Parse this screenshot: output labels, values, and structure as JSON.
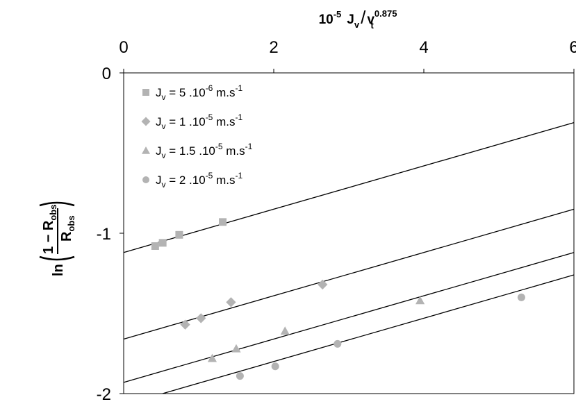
{
  "chart_data": {
    "type": "scatter",
    "x_axis": {
      "position": "top",
      "label_main": "10",
      "label_exp": "-5",
      "label_rest": "J",
      "label_rest_sub": "v",
      "label_slash": "/",
      "label_denom": "v",
      "label_denom_sub": "t",
      "label_denom_exp": "0.875",
      "min": 0,
      "max": 6,
      "ticks": [
        "0",
        "2",
        "4",
        "6"
      ]
    },
    "y_axis": {
      "label_ln": "ln",
      "label_num": "1 − R",
      "label_num_sub": "obs",
      "label_den": "R",
      "label_den_sub": "obs",
      "min": -2,
      "max": 0,
      "ticks": [
        "0",
        "-1",
        "-2"
      ]
    },
    "legend": {
      "placement": "top-left",
      "entries": [
        {
          "prefix": "J",
          "sub": "v",
          "mid": " = 5 .10",
          "exp": "-6",
          "unit": " m.s",
          "unit_exp": "-1"
        },
        {
          "prefix": "J",
          "sub": "v",
          "mid": " = 1 .10",
          "exp": "-5",
          "unit": " m.s",
          "unit_exp": "-1"
        },
        {
          "prefix": "J",
          "sub": "v",
          "mid": " = 1.5 .10",
          "exp": "-5",
          "unit": " m.s",
          "unit_exp": "-1"
        },
        {
          "prefix": "J",
          "sub": "v",
          "mid": " = 2 .10",
          "exp": "-5",
          "unit": " m.s",
          "unit_exp": "-1"
        }
      ]
    },
    "series": [
      {
        "marker": "square",
        "points": [
          [
            0.42,
            -1.08
          ],
          [
            0.52,
            -1.06
          ],
          [
            0.74,
            -1.01
          ],
          [
            1.32,
            -0.93
          ]
        ],
        "fit": {
          "intercept": -1.12,
          "slope": 0.135
        }
      },
      {
        "marker": "diamond",
        "points": [
          [
            0.82,
            -1.57
          ],
          [
            1.03,
            -1.53
          ],
          [
            1.43,
            -1.43
          ],
          [
            2.65,
            -1.32
          ]
        ],
        "fit": {
          "intercept": -1.66,
          "slope": 0.135
        }
      },
      {
        "marker": "triangle",
        "points": [
          [
            1.18,
            -1.78
          ],
          [
            1.5,
            -1.72
          ],
          [
            2.15,
            -1.61
          ],
          [
            3.95,
            -1.42
          ]
        ],
        "fit": {
          "intercept": -1.93,
          "slope": 0.135
        }
      },
      {
        "marker": "circle",
        "points": [
          [
            1.55,
            -1.89
          ],
          [
            2.02,
            -1.83
          ],
          [
            2.85,
            -1.69
          ],
          [
            5.3,
            -1.4
          ]
        ],
        "fit": {
          "intercept": -2.07,
          "slope": 0.135
        }
      }
    ],
    "marker_color": "#b3b3b3",
    "line_color": "#000000",
    "grid": false
  }
}
